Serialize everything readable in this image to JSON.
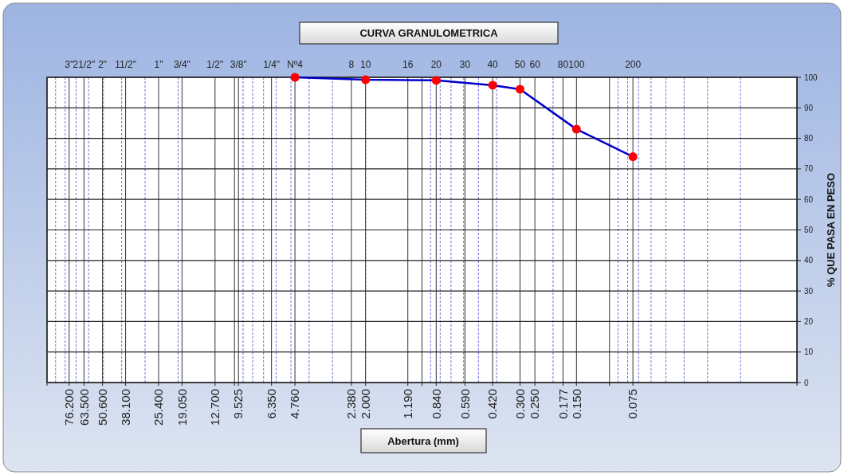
{
  "chart_data": {
    "type": "line",
    "title": "CURVA GRANULOMETRICA",
    "xlabel": "Abertura (mm)",
    "ylabel": "% QUE PASA EN PESO",
    "log": "x",
    "grid": true,
    "marker": "circle",
    "line_style": "solid",
    "xlim": [
      100,
      0.01
    ],
    "ylim": [
      0,
      100
    ],
    "xticks": [
      {
        "value": 100,
        "label": null
      },
      {
        "value": 76.2,
        "label": "76.200"
      },
      {
        "value": 63.5,
        "label": "63.500"
      },
      {
        "value": 50.6,
        "label": "50.600"
      },
      {
        "value": 38.1,
        "label": "38.100"
      },
      {
        "value": 25.4,
        "label": "25.400"
      },
      {
        "value": 19.05,
        "label": "19.050"
      },
      {
        "value": 12.7,
        "label": "12.700"
      },
      {
        "value": 10,
        "label": null
      },
      {
        "value": 9.525,
        "label": "9.525"
      },
      {
        "value": 6.35,
        "label": "6.350"
      },
      {
        "value": 4.76,
        "label": "4.760"
      },
      {
        "value": 2.38,
        "label": "2.380"
      },
      {
        "value": 2,
        "label": "2.000"
      },
      {
        "value": 1.19,
        "label": "1.190"
      },
      {
        "value": 1,
        "label": null
      },
      {
        "value": 0.84,
        "label": "0.840"
      },
      {
        "value": 0.59,
        "label": "0.590"
      },
      {
        "value": 0.42,
        "label": "0.420"
      },
      {
        "value": 0.3,
        "label": "0.300"
      },
      {
        "value": 0.25,
        "label": "0.250"
      },
      {
        "value": 0.177,
        "label": "0.177"
      },
      {
        "value": 0.15,
        "label": "0.150"
      },
      {
        "value": 0.1,
        "label": null
      },
      {
        "value": 0.075,
        "label": "0.075"
      },
      {
        "value": 0.01,
        "label": null
      }
    ],
    "yticks": [
      0,
      10,
      20,
      30,
      40,
      50,
      60,
      70,
      80,
      90,
      100
    ],
    "annotations": [
      "3\"",
      "21/2\"",
      "2\"",
      "11/2\"",
      "1\"",
      "3/4\"",
      "1/2\"",
      "3/8\"",
      "1/4\"",
      "Nº4",
      "8",
      "10",
      "16",
      "20",
      "30",
      "40",
      "50",
      "60",
      "80",
      "100",
      "200"
    ],
    "series": [
      {
        "color": "#0000cc",
        "colors": [
          "#ff0000",
          "#ff0000",
          "#ff0000",
          "#ff0000",
          "#ff0000",
          "#ff0000",
          "#ff0000"
        ],
        "x": [
          4.76,
          2,
          0.84,
          0.42,
          0.3,
          0.15,
          0.075
        ],
        "values": [
          100,
          99.2,
          99,
          97.4,
          96.1,
          83,
          74
        ]
      }
    ]
  }
}
